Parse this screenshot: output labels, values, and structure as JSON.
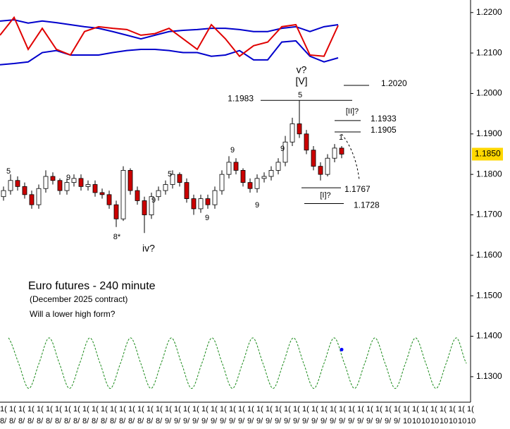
{
  "chart_data": {
    "type": "candlestick",
    "title": "Euro futures - 240 minute",
    "subtitle": "(December 2025 contract)",
    "question": "Will a lower high form?",
    "ylim": [
      1.1237,
      1.2231
    ],
    "yticks": [
      {
        "value": 1.22,
        "label": "1.2200"
      },
      {
        "value": 1.21,
        "label": "1.2100"
      },
      {
        "value": 1.2,
        "label": "1.2000"
      },
      {
        "value": 1.19,
        "label": "1.1900"
      },
      {
        "value": 1.18,
        "label": "1.1800"
      },
      {
        "value": 1.17,
        "label": "1.1700"
      },
      {
        "value": 1.16,
        "label": "1.1600"
      },
      {
        "value": 1.15,
        "label": "1.1500"
      },
      {
        "value": 1.14,
        "label": "1.1400"
      },
      {
        "value": 1.13,
        "label": "1.1300"
      }
    ],
    "up_color": "#ffffff",
    "down_color": "#cc0000",
    "open": [
      1.1745,
      1.176,
      1.1785,
      1.177,
      1.175,
      1.1725,
      1.1765,
      1.1795,
      1.1785,
      1.176,
      1.178,
      1.179,
      1.177,
      1.1775,
      1.1755,
      1.175,
      1.1725,
      1.169,
      1.181,
      1.176,
      1.1735,
      1.17,
      1.1745,
      1.176,
      1.1775,
      1.18,
      1.178,
      1.174,
      1.1715,
      1.174,
      1.1725,
      1.176,
      1.18,
      1.183,
      1.181,
      1.178,
      1.1765,
      1.179,
      1.1795,
      1.181,
      1.183,
      1.188,
      1.1925,
      1.19,
      1.186,
      1.182,
      1.18,
      1.184,
      1.1865
    ],
    "high": [
      1.177,
      1.18,
      1.1795,
      1.178,
      1.176,
      1.1775,
      1.181,
      1.1805,
      1.179,
      1.179,
      1.18,
      1.18,
      1.1785,
      1.1785,
      1.1765,
      1.176,
      1.1735,
      1.182,
      1.1815,
      1.177,
      1.1745,
      1.1755,
      1.177,
      1.1785,
      1.181,
      1.1805,
      1.179,
      1.175,
      1.175,
      1.175,
      1.177,
      1.181,
      1.1845,
      1.184,
      1.1815,
      1.179,
      1.18,
      1.1805,
      1.182,
      1.184,
      1.1895,
      1.194,
      1.1983,
      1.191,
      1.187,
      1.183,
      1.185,
      1.1875,
      1.187
    ],
    "low": [
      1.1735,
      1.175,
      1.176,
      1.174,
      1.1715,
      1.1715,
      1.1755,
      1.1775,
      1.175,
      1.175,
      1.177,
      1.176,
      1.176,
      1.1745,
      1.174,
      1.1715,
      1.167,
      1.1685,
      1.175,
      1.1725,
      1.1655,
      1.169,
      1.1735,
      1.175,
      1.1765,
      1.177,
      1.173,
      1.17,
      1.1705,
      1.1715,
      1.1715,
      1.175,
      1.179,
      1.18,
      1.177,
      1.1755,
      1.1755,
      1.178,
      1.1785,
      1.18,
      1.182,
      1.187,
      1.189,
      1.185,
      1.181,
      1.1785,
      1.1795,
      1.183,
      1.184
    ],
    "close": [
      1.176,
      1.1785,
      1.177,
      1.175,
      1.1725,
      1.1765,
      1.1795,
      1.1785,
      1.176,
      1.178,
      1.179,
      1.177,
      1.1775,
      1.1755,
      1.175,
      1.1725,
      1.169,
      1.181,
      1.176,
      1.1735,
      1.17,
      1.1745,
      1.176,
      1.1775,
      1.18,
      1.178,
      1.174,
      1.1715,
      1.174,
      1.1725,
      1.176,
      1.18,
      1.183,
      1.181,
      1.178,
      1.1765,
      1.179,
      1.1795,
      1.181,
      1.183,
      1.188,
      1.1925,
      1.19,
      1.186,
      1.182,
      1.18,
      1.184,
      1.1865,
      1.185
    ],
    "indicators": [
      {
        "color": "#0000cc",
        "values": [
          1.2179,
          1.2182,
          1.2174,
          1.2179,
          1.2175,
          1.217,
          1.2165,
          1.2161,
          1.2153,
          1.2144,
          1.2135,
          1.2144,
          1.2153,
          1.2156,
          1.2158,
          1.2161,
          1.2161,
          1.2158,
          1.2153,
          1.2153,
          1.2161,
          1.2165,
          1.2153,
          1.2165,
          1.217
        ]
      },
      {
        "color": "#0000cc",
        "values": [
          1.2071,
          1.2074,
          1.2078,
          1.2101,
          1.2106,
          1.2095,
          1.2095,
          1.2095,
          1.2101,
          1.2106,
          1.2109,
          1.2109,
          1.2106,
          1.2101,
          1.2101,
          1.2092,
          1.2095,
          1.2106,
          1.2083,
          1.2083,
          1.2127,
          1.213,
          1.2092,
          1.2078,
          1.2088
        ]
      },
      {
        "color": "#e00000",
        "values": [
          1.2144,
          1.2188,
          1.2109,
          1.2161,
          1.2109,
          1.2095,
          1.2153,
          1.2165,
          1.2161,
          1.2158,
          1.2144,
          1.2148,
          1.2161,
          1.2135,
          1.2109,
          1.217,
          1.2135,
          1.2092,
          1.2118,
          1.2127,
          1.2165,
          1.217,
          1.2095,
          1.2092,
          1.2168
        ]
      }
    ],
    "cycle": {
      "color": "#1a8a1a",
      "dot": 1.1367,
      "dot_color": "#0000ff",
      "values": [
        1.1396,
        1.1333,
        1.1271,
        1.1333,
        1.1396,
        1.1333,
        1.1271,
        1.1333,
        1.1396,
        1.1333,
        1.1271,
        1.1333,
        1.1396,
        1.1333,
        1.1271,
        1.1333,
        1.1396,
        1.1333,
        1.1271,
        1.1333,
        1.1396,
        1.1333,
        1.1271,
        1.1333,
        1.1396,
        1.1333,
        1.1271,
        1.1333,
        1.1396,
        1.1333,
        1.1271,
        1.1333,
        1.1396,
        1.1333,
        1.1271,
        1.1333,
        1.1396,
        1.1333,
        1.1271,
        1.1333,
        1.1396,
        1.1333,
        1.1271,
        1.1333,
        1.1396,
        1.1333
      ]
    },
    "levels": [
      {
        "value": 1.202,
        "label": "1.2020"
      },
      {
        "value": 1.1983,
        "label": "1.1983"
      },
      {
        "value": 1.1933,
        "label": "1.1933"
      },
      {
        "value": 1.1905,
        "label": "1.1905"
      },
      {
        "value": 1.1767,
        "label": "1.1767"
      },
      {
        "value": 1.1728,
        "label": "1.1728"
      }
    ],
    "last_price": {
      "value": 1.185,
      "label": "1.1850",
      "color": "#ffd700"
    },
    "annotations": [
      {
        "text": "v?",
        "color": "#000000"
      },
      {
        "text": "[V]",
        "color": "#000000"
      },
      {
        "text": "5",
        "color": "#9a9a2a"
      },
      {
        "text": "[II]?",
        "color": "#000000"
      },
      {
        "text": "1",
        "color": "#cc0000"
      },
      {
        "text": "[I]?",
        "color": "#000000"
      },
      {
        "text": "9",
        "color": "#cc0000"
      },
      {
        "text": "9",
        "color": "#cc0000"
      },
      {
        "text": "9",
        "color": "#cc0000"
      },
      {
        "text": "9",
        "color": "#cc0000"
      },
      {
        "text": "5",
        "color": "#9a9a2a"
      },
      {
        "text": "5",
        "color": "#9a9a2a"
      },
      {
        "text": "9",
        "color": "#0000cc"
      },
      {
        "text": "9",
        "color": "#0000cc"
      },
      {
        "text": "8*",
        "color": "#0000cc"
      },
      {
        "text": "iv?",
        "color": "#000000"
      }
    ],
    "x_tick_rows": [
      [
        "1(",
        "1(",
        "1(",
        "1(",
        "1(",
        "1(",
        "1(",
        "1(",
        "1(",
        "1(",
        "1(",
        "1(",
        "1(",
        "1(",
        "1(",
        "1(",
        "1(",
        "1(",
        "1(",
        "1(",
        "1(",
        "1(",
        "1(",
        "1(",
        "1(",
        "1(",
        "1(",
        "1(",
        "1(",
        "1(",
        "1(",
        "1(",
        "1(",
        "1(",
        "1(",
        "1(",
        "1(",
        "1(",
        "1(",
        "1(",
        "1(",
        "1(",
        "1(",
        "1(",
        "1(",
        "1(",
        "1(",
        "1(",
        "1(",
        "1(",
        "1(",
        "1("
      ],
      [
        "8/",
        "8/",
        "8/",
        "8/",
        "8/",
        "8/",
        "8/",
        "8/",
        "8/",
        "8/",
        "8/",
        "8/",
        "8/",
        "8/",
        "8/",
        "8/",
        "8/",
        "8/",
        "9/",
        "9/",
        "9/",
        "9/",
        "9/",
        "9/",
        "9/",
        "9/",
        "9/",
        "9/",
        "9/",
        "9/",
        "9/",
        "9/",
        "9/",
        "9/",
        "9/",
        "9/",
        "9/",
        "9/",
        "9/",
        "9/",
        "9/",
        "9/",
        "9/",
        "9/",
        "10",
        "10",
        "10",
        "10",
        "10",
        "10",
        "10",
        "10"
      ]
    ]
  }
}
